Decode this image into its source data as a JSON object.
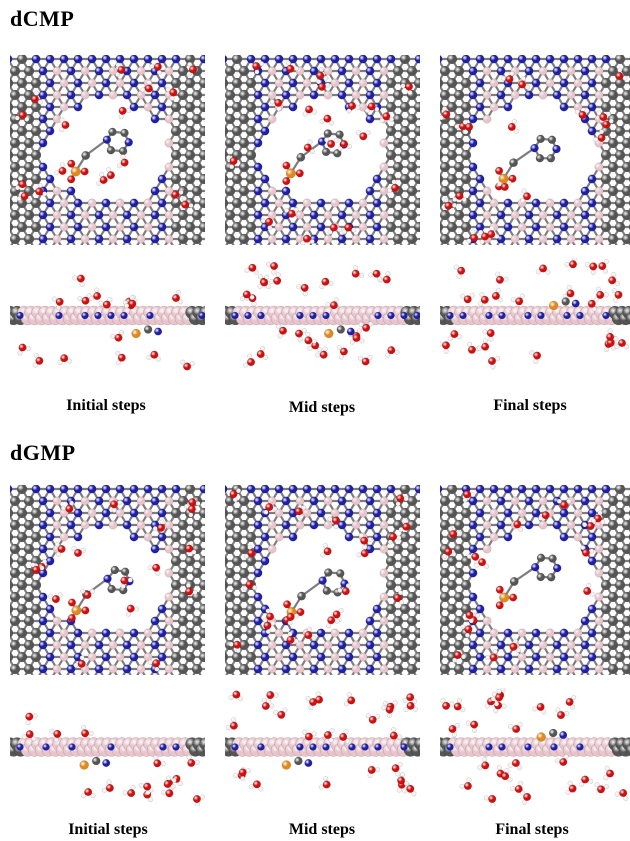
{
  "sections": [
    {
      "title": "dCMP",
      "captions": [
        "Initial steps",
        "Mid steps",
        "Final steps"
      ]
    },
    {
      "title": "dGMP",
      "captions": [
        "Initial steps",
        "Mid steps",
        "Final steps"
      ]
    }
  ],
  "atom_colors": {
    "carbon": "#555555",
    "boron": "#e8c4cc",
    "nitrogen": "#1f1fa8",
    "oxygen": "#d10f0f",
    "hydrogen": "#f2f2f2",
    "phosphorus": "#e08a1e"
  },
  "panel_views": [
    "top-view",
    "side-view"
  ]
}
